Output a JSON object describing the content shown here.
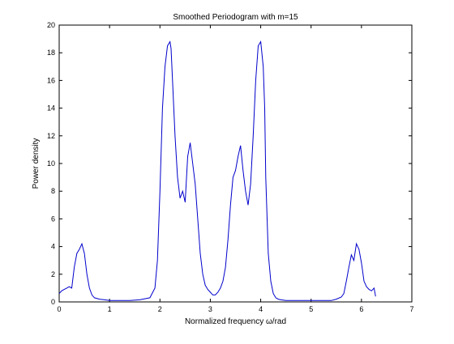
{
  "chart_data": {
    "type": "line",
    "title": "Smoothed Periodogram with m=15",
    "xlabel": "Normalized frequency  ω/rad",
    "ylabel": "Power density",
    "xlim": [
      0,
      7
    ],
    "ylim": [
      0,
      20
    ],
    "xticks": [
      0,
      1,
      2,
      3,
      4,
      5,
      6,
      7
    ],
    "yticks": [
      0,
      2,
      4,
      6,
      8,
      10,
      12,
      14,
      16,
      18,
      20
    ],
    "grid": false,
    "line_color": "#0000cc",
    "series": [
      {
        "x": [
          0.0,
          0.05,
          0.1,
          0.15,
          0.2,
          0.25,
          0.3,
          0.35,
          0.4,
          0.45,
          0.5,
          0.55,
          0.6,
          0.65,
          0.7,
          0.8,
          0.9,
          1.0,
          1.2,
          1.4,
          1.6,
          1.8,
          1.9,
          1.95,
          2.0,
          2.05,
          2.1,
          2.15,
          2.2,
          2.22,
          2.25,
          2.3,
          2.35,
          2.4,
          2.45,
          2.5,
          2.55,
          2.6,
          2.65,
          2.7,
          2.75,
          2.8,
          2.85,
          2.9,
          2.95,
          3.0,
          3.05,
          3.1,
          3.15,
          3.2,
          3.25,
          3.3,
          3.35,
          3.4,
          3.45,
          3.5,
          3.55,
          3.6,
          3.65,
          3.7,
          3.75,
          3.8,
          3.85,
          3.9,
          3.95,
          4.0,
          4.05,
          4.08,
          4.1,
          4.15,
          4.2,
          4.25,
          4.3,
          4.35,
          4.4,
          4.5,
          4.6,
          4.8,
          5.0,
          5.2,
          5.4,
          5.5,
          5.6,
          5.65,
          5.7,
          5.75,
          5.8,
          5.85,
          5.9,
          5.95,
          6.0,
          6.05,
          6.1,
          6.15,
          6.2,
          6.25,
          6.28
        ],
        "y": [
          0.6,
          0.8,
          0.9,
          1.0,
          1.1,
          1.0,
          2.5,
          3.5,
          3.8,
          4.2,
          3.5,
          2.0,
          1.0,
          0.5,
          0.3,
          0.2,
          0.15,
          0.1,
          0.1,
          0.1,
          0.15,
          0.3,
          1.0,
          3.0,
          8.0,
          14.0,
          17.0,
          18.5,
          18.8,
          18.3,
          16.0,
          12.0,
          9.0,
          7.5,
          8.0,
          7.2,
          10.5,
          11.5,
          10.0,
          8.5,
          6.0,
          3.5,
          2.0,
          1.2,
          0.9,
          0.7,
          0.5,
          0.5,
          0.7,
          1.0,
          1.5,
          2.5,
          4.5,
          7.0,
          9.0,
          9.5,
          10.5,
          11.3,
          9.5,
          8.0,
          7.0,
          8.5,
          12.0,
          16.0,
          18.5,
          18.8,
          17.0,
          14.0,
          9.0,
          3.5,
          1.5,
          0.6,
          0.3,
          0.2,
          0.15,
          0.1,
          0.1,
          0.1,
          0.1,
          0.1,
          0.1,
          0.2,
          0.35,
          0.6,
          1.5,
          2.5,
          3.4,
          3.0,
          4.2,
          3.8,
          2.8,
          1.5,
          1.1,
          0.9,
          0.8,
          1.0,
          0.4
        ]
      }
    ]
  }
}
